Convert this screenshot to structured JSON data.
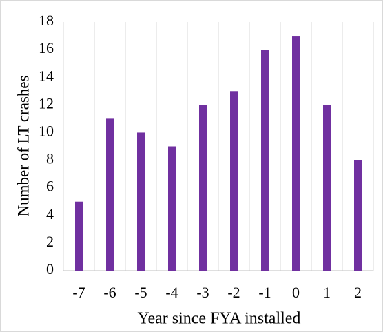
{
  "chart_data": {
    "type": "bar",
    "x_label": "Year since FYA installed",
    "y_label": "Number of LT crashes",
    "categories": [
      "-7",
      "-6",
      "-5",
      "-4",
      "-3",
      "-2",
      "-1",
      "0",
      "1",
      "2"
    ],
    "values": [
      5,
      11,
      10,
      9,
      12,
      13,
      16,
      17,
      12,
      8
    ],
    "color": "#7030a0",
    "ylim": [
      0,
      18
    ],
    "yticks": [
      0,
      2,
      4,
      6,
      8,
      10,
      12,
      14,
      16,
      18
    ],
    "grid": true
  }
}
